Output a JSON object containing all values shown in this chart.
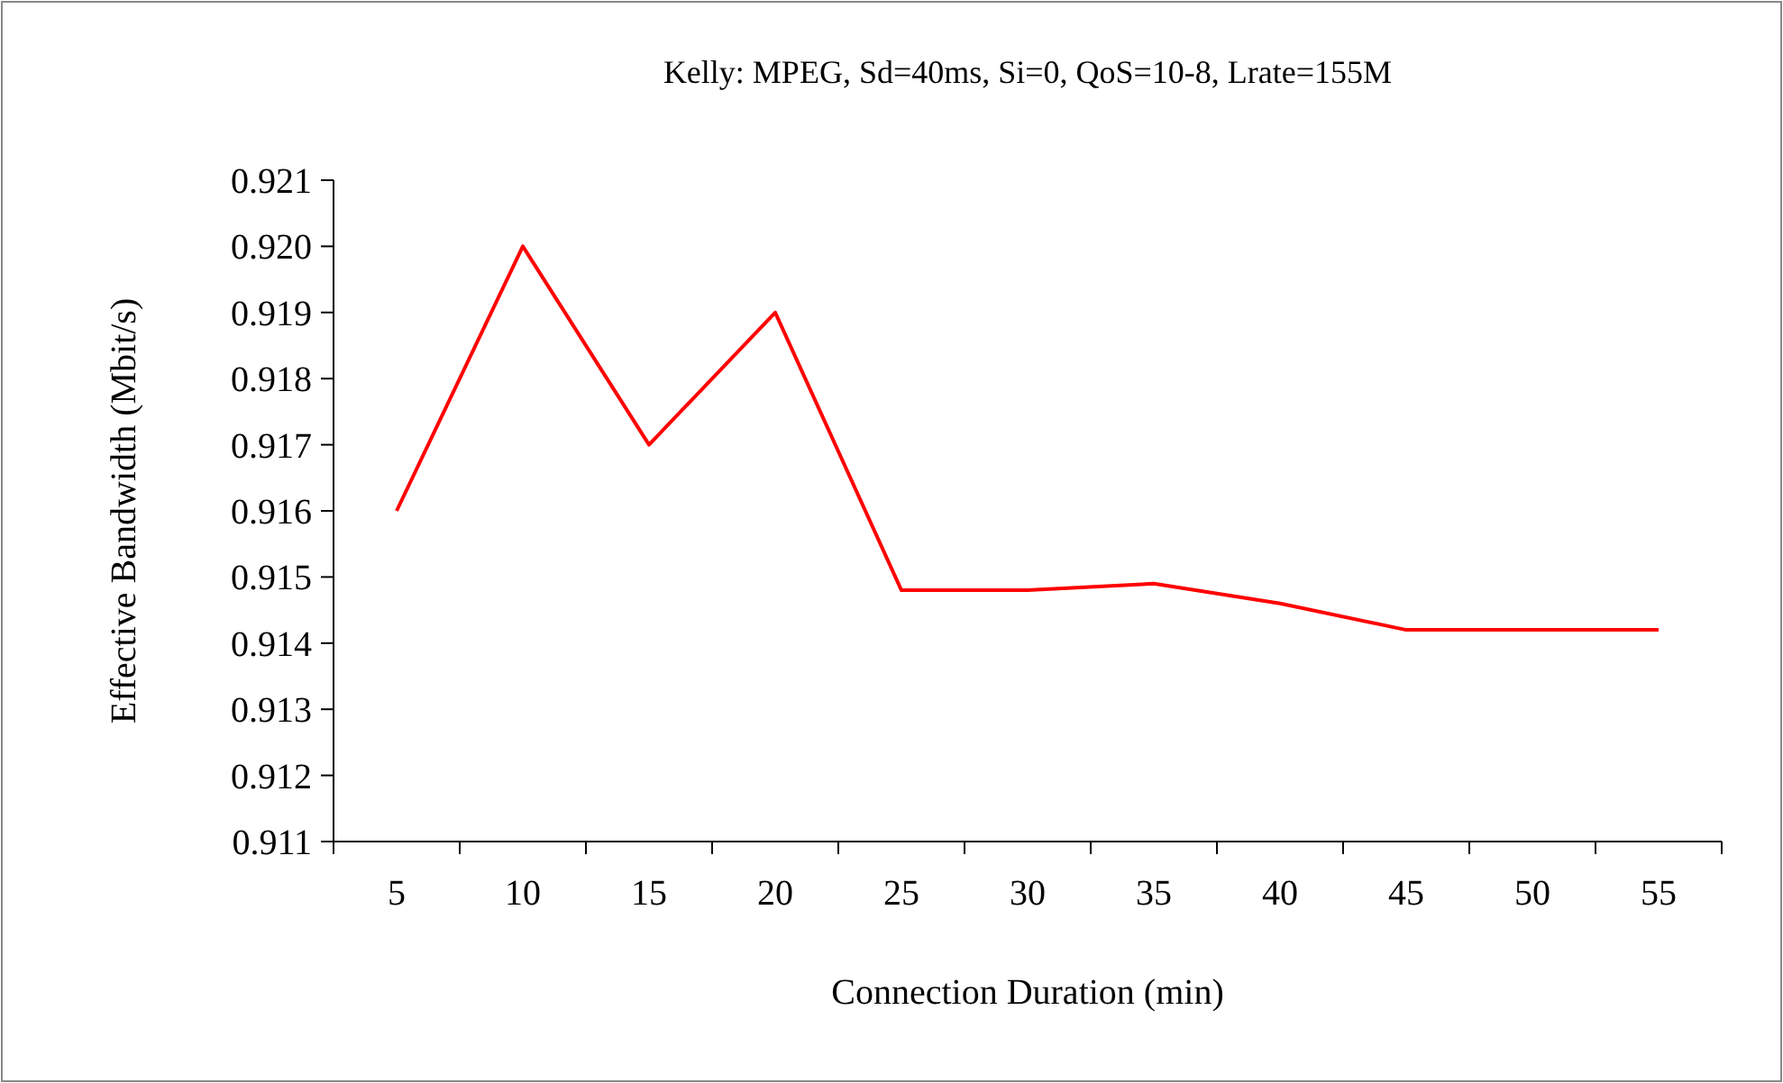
{
  "chart_data": {
    "type": "line",
    "title": "Kelly: MPEG, Sd=40ms, Si=0, QoS=10-8, Lrate=155M",
    "xlabel": "Connection Duration (min)",
    "ylabel": "Effective Bandwidth (Mbit/s)",
    "categories": [
      "5",
      "10",
      "15",
      "20",
      "25",
      "30",
      "35",
      "40",
      "45",
      "50",
      "55"
    ],
    "series": [
      {
        "color": "#ff0000",
        "values": [
          0.916,
          0.92,
          0.917,
          0.919,
          0.9148,
          0.9148,
          0.9149,
          0.9146,
          0.9142,
          0.9142,
          0.9142
        ]
      }
    ],
    "ylim": [
      0.911,
      0.921
    ],
    "yticks": [
      {
        "value": 0.911,
        "label": "0.911"
      },
      {
        "value": 0.912,
        "label": "0.912"
      },
      {
        "value": 0.913,
        "label": "0.913"
      },
      {
        "value": 0.914,
        "label": "0.914"
      },
      {
        "value": 0.915,
        "label": "0.915"
      },
      {
        "value": 0.916,
        "label": "0.916"
      },
      {
        "value": 0.917,
        "label": "0.917"
      },
      {
        "value": 0.918,
        "label": "0.918"
      },
      {
        "value": 0.919,
        "label": "0.919"
      },
      {
        "value": 0.92,
        "label": "0.920"
      },
      {
        "value": 0.921,
        "label": "0.921"
      }
    ],
    "grid": false,
    "marker": "none",
    "line_style": "solid"
  }
}
